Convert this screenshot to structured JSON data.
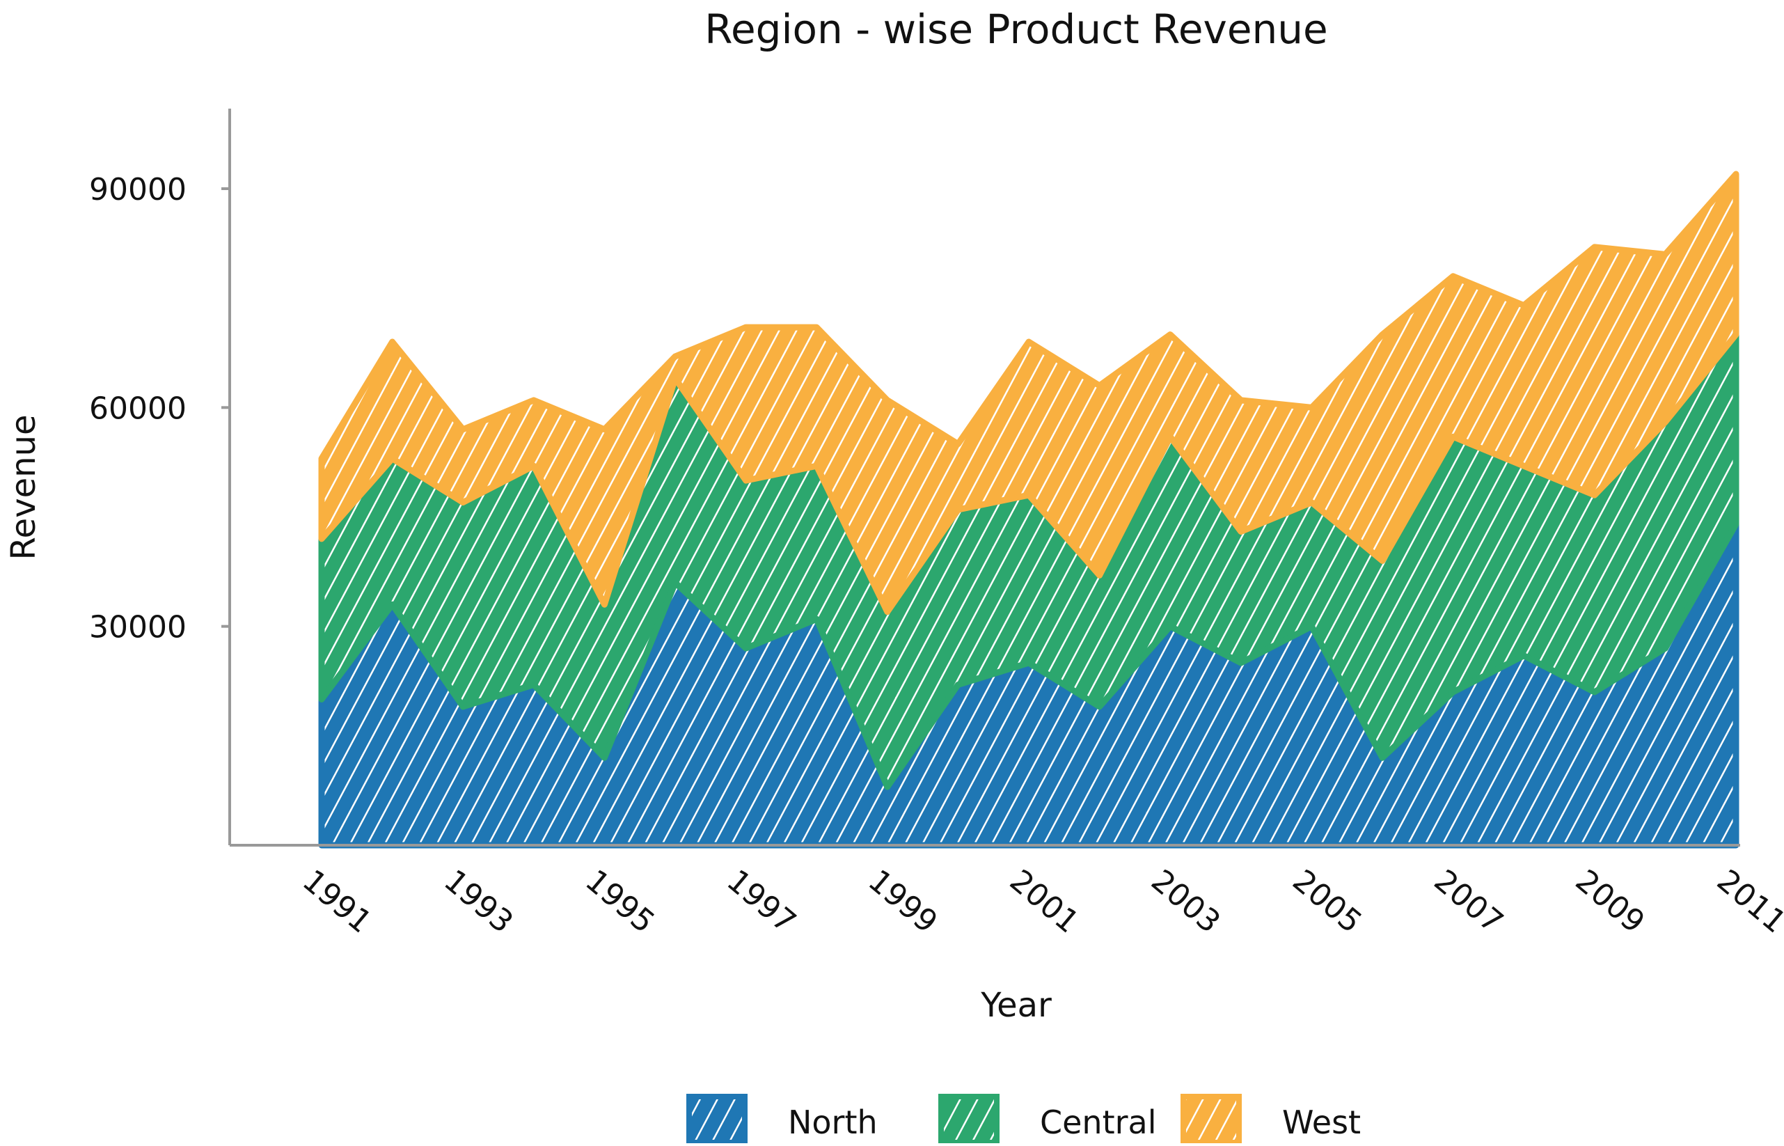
{
  "chart_data": {
    "type": "area",
    "stacked": true,
    "title": "Region - wise Product Revenue",
    "xlabel": "Year",
    "ylabel": "Revenue",
    "x": [
      1991,
      1992,
      1993,
      1994,
      1995,
      1996,
      1997,
      1998,
      1999,
      2000,
      2001,
      2002,
      2003,
      2004,
      2005,
      2006,
      2007,
      2008,
      2009,
      2010,
      2011
    ],
    "x_tick_labels": [
      "1991",
      "1993",
      "1995",
      "1997",
      "1999",
      "2001",
      "2003",
      "2005",
      "2007",
      "2009",
      "2011"
    ],
    "y_tick_labels": [
      "30000",
      "60000",
      "90000"
    ],
    "y_ticks": [
      30000,
      60000,
      90000
    ],
    "ylim": [
      0,
      100000
    ],
    "grid": false,
    "legend_position": "bottom",
    "style": "hand-drawn hatched",
    "series": [
      {
        "name": "North",
        "color": "#1f77b4",
        "values": [
          20000,
          33000,
          19000,
          22000,
          12000,
          36000,
          27000,
          31000,
          8000,
          22000,
          25000,
          19000,
          30000,
          25000,
          30000,
          12000,
          21000,
          26000,
          21000,
          27000,
          44000
        ]
      },
      {
        "name": "Central",
        "color": "#2ca76e",
        "values": [
          22000,
          20000,
          28000,
          30000,
          21000,
          28000,
          23000,
          21000,
          24000,
          24000,
          23000,
          18000,
          26000,
          18000,
          17000,
          27000,
          35000,
          26000,
          27000,
          31000,
          26000
        ]
      },
      {
        "name": "West",
        "color": "#f9b040",
        "values": [
          11000,
          16000,
          10000,
          9000,
          24000,
          3000,
          21000,
          19000,
          29000,
          9000,
          21000,
          26000,
          14000,
          18000,
          13000,
          31000,
          22000,
          22000,
          34000,
          23000,
          22000
        ]
      }
    ]
  }
}
